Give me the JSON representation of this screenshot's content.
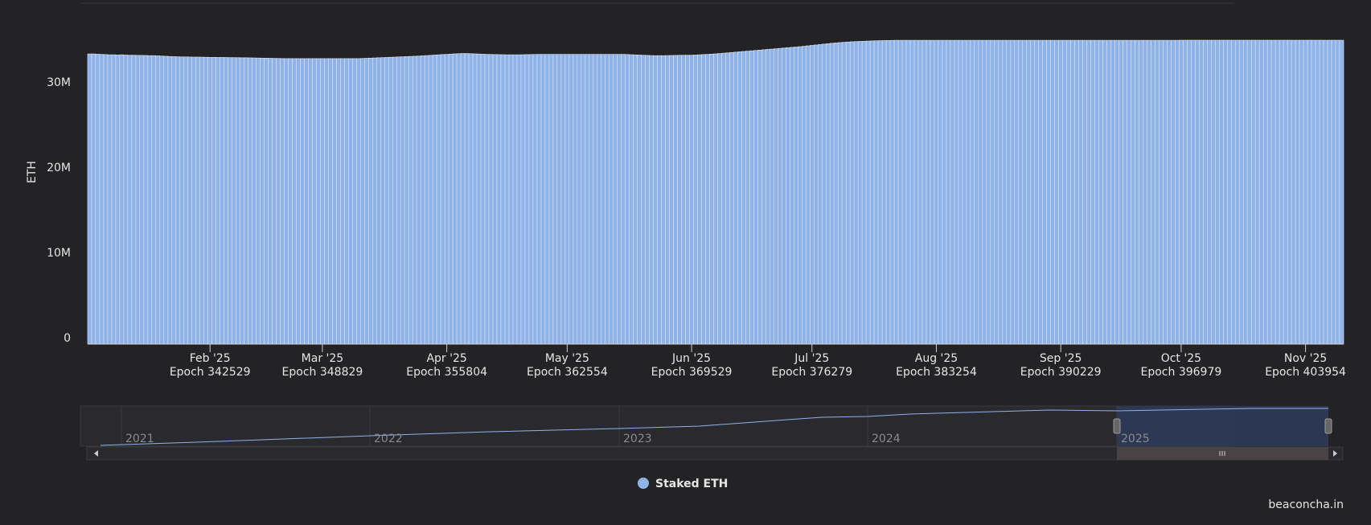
{
  "chart_data": {
    "type": "bar",
    "y_label": "ETH",
    "legend_name": "Staked ETH",
    "color": "#8fb2e8",
    "credit": "beaconcha.in",
    "xlim": [
      335667,
      406091
    ],
    "ylim": [
      0,
      40000000
    ],
    "yticks": [
      {
        "value": 0,
        "label": "0"
      },
      {
        "value": 10000000,
        "label": "10M"
      },
      {
        "value": 20000000,
        "label": "20M"
      },
      {
        "value": 30000000,
        "label": "30M"
      }
    ],
    "xticks": [
      {
        "value": 342529,
        "label": "Feb '25",
        "epoch": "Epoch 342529"
      },
      {
        "value": 348829,
        "label": "Mar '25",
        "epoch": "Epoch 348829"
      },
      {
        "value": 355804,
        "label": "Apr '25",
        "epoch": "Epoch 355804"
      },
      {
        "value": 362554,
        "label": "May '25",
        "epoch": "Epoch 362554"
      },
      {
        "value": 369529,
        "label": "Jun '25",
        "epoch": "Epoch 369529"
      },
      {
        "value": 376279,
        "label": "Jul '25",
        "epoch": "Epoch 376279"
      },
      {
        "value": 383254,
        "label": "Aug '25",
        "epoch": "Epoch 383254"
      },
      {
        "value": 390229,
        "label": "Sep '25",
        "epoch": "Epoch 390229"
      },
      {
        "value": 396979,
        "label": "Oct '25",
        "epoch": "Epoch 396979"
      },
      {
        "value": 403954,
        "label": "Nov '25",
        "epoch": "Epoch 403954"
      }
    ],
    "navigator_labels": [
      "2021",
      "2022",
      "2023",
      "2024",
      "2025"
    ],
    "x": [
      335779,
      336004,
      336229,
      336454,
      336679,
      336904,
      337129,
      337354,
      337579,
      337804,
      338029,
      338254,
      338479,
      338704,
      338929,
      339154,
      339379,
      339604,
      339829,
      340054,
      340279,
      340504,
      340729,
      340954,
      341179,
      341404,
      341629,
      341854,
      342079,
      342304,
      342529,
      342754,
      342979,
      343204,
      343429,
      343654,
      343879,
      344104,
      344329,
      344554,
      344779,
      345004,
      345229,
      345454,
      345679,
      345904,
      346129,
      346354,
      346579,
      346804,
      347029,
      347254,
      347479,
      347704,
      347929,
      348154,
      348379,
      348604,
      348829,
      349054,
      349279,
      349504,
      349729,
      349954,
      350179,
      350404,
      350629,
      350854,
      351079,
      351304,
      351529,
      351754,
      351979,
      352204,
      352429,
      352654,
      352879,
      353104,
      353329,
      353554,
      353779,
      354004,
      354229,
      354454,
      354679,
      354904,
      355129,
      355354,
      355579,
      355804,
      356029,
      356254,
      356479,
      356704,
      356929,
      357154,
      357379,
      357604,
      357829,
      358054,
      358279,
      358504,
      358729,
      358954,
      359179,
      359404,
      359629,
      359854,
      360079,
      360304,
      360529,
      360754,
      360979,
      361204,
      361429,
      361654,
      361879,
      362104,
      362329,
      362554,
      362779,
      363004,
      363229,
      363454,
      363679,
      363904,
      364129,
      364354,
      364579,
      364804,
      365029,
      365254,
      365479,
      365704,
      365929,
      366154,
      366379,
      366604,
      366829,
      367054,
      367279,
      367504,
      367729,
      367954,
      368179,
      368404,
      368629,
      368854,
      369079,
      369304,
      369529,
      369754,
      369979,
      370204,
      370429,
      370654,
      370879,
      371104,
      371329,
      371554,
      371779,
      372004,
      372229,
      372454,
      372679,
      372904,
      373129,
      373354,
      373579,
      373804,
      374029,
      374254,
      374479,
      374704,
      374929,
      375154,
      375379,
      375604,
      375829,
      376054,
      376279,
      376504,
      376729,
      376954,
      377179,
      377404,
      377629,
      377854,
      378079,
      378304,
      378529,
      378754,
      378979,
      379204,
      379429,
      379654,
      379879,
      380104,
      380329,
      380554,
      380779,
      381004,
      381229,
      381454,
      381679,
      381904,
      382129,
      382354,
      382579,
      382804,
      383029,
      383254,
      383479,
      383704,
      383929,
      384154,
      384379,
      384604,
      384829,
      385054,
      385279,
      385504,
      385729,
      385954,
      386179,
      386404,
      386629,
      386854,
      387079,
      387304,
      387529,
      387754,
      387979,
      388204,
      388429,
      388654,
      388879,
      389104,
      389329,
      389554,
      389779,
      390004,
      390229,
      390454,
      390679,
      390904,
      391129,
      391354,
      391579,
      391804,
      392029,
      392254,
      392479,
      392704,
      392929,
      393154,
      393379,
      393604,
      393829,
      394054,
      394279,
      394504,
      394729,
      394954,
      395179,
      395404,
      395629,
      395854,
      396079,
      396304,
      396529,
      396754,
      396979,
      397204,
      397429,
      397654,
      397879,
      398104,
      398329,
      398554,
      398779,
      399004,
      399229,
      399454,
      399679,
      399904,
      400129,
      400354,
      400579,
      400804,
      401029,
      401254,
      401479,
      401704,
      401929,
      402154,
      402379,
      402604,
      402829,
      403054,
      403279,
      403504,
      403729,
      403954,
      404179,
      404404,
      404629,
      404854,
      405079,
      405304,
      405529,
      405754,
      405979
    ],
    "values": [
      34050000,
      34050000,
      34020000,
      34000000,
      33980000,
      33950000,
      33950000,
      33930000,
      33950000,
      33920000,
      33900000,
      33900000,
      33880000,
      33880000,
      33870000,
      33850000,
      33850000,
      33830000,
      33800000,
      33780000,
      33750000,
      33730000,
      33720000,
      33700000,
      33700000,
      33690000,
      33680000,
      33680000,
      33670000,
      33660000,
      33650000,
      33650000,
      33640000,
      33640000,
      33630000,
      33620000,
      33620000,
      33610000,
      33600000,
      33600000,
      33590000,
      33580000,
      33570000,
      33560000,
      33550000,
      33540000,
      33530000,
      33520000,
      33510000,
      33500000,
      33500000,
      33500000,
      33500000,
      33500000,
      33500000,
      33500000,
      33500000,
      33500000,
      33500000,
      33500000,
      33500000,
      33500000,
      33500000,
      33500000,
      33500000,
      33500000,
      33500000,
      33500000,
      33520000,
      33540000,
      33560000,
      33580000,
      33600000,
      33620000,
      33640000,
      33660000,
      33680000,
      33700000,
      33720000,
      33740000,
      33760000,
      33780000,
      33800000,
      33830000,
      33860000,
      33890000,
      33920000,
      33950000,
      33980000,
      34000000,
      34030000,
      34060000,
      34080000,
      34100000,
      34100000,
      34080000,
      34060000,
      34040000,
      34020000,
      34000000,
      33990000,
      33980000,
      33970000,
      33960000,
      33950000,
      33950000,
      33950000,
      33950000,
      33960000,
      33970000,
      33980000,
      33990000,
      34000000,
      34000000,
      34000000,
      34000000,
      34000000,
      34000000,
      34000000,
      34000000,
      34000000,
      34000000,
      34000000,
      34000000,
      34000000,
      34000000,
      34000000,
      34000000,
      34000000,
      34000000,
      34000000,
      34000000,
      34000000,
      34000000,
      33980000,
      33960000,
      33940000,
      33920000,
      33900000,
      33880000,
      33860000,
      33850000,
      33850000,
      33850000,
      33860000,
      33870000,
      33880000,
      33890000,
      33900000,
      33900000,
      33900000,
      33920000,
      33950000,
      33980000,
      34000000,
      34030000,
      34060000,
      34100000,
      34140000,
      34180000,
      34220000,
      34260000,
      34300000,
      34340000,
      34380000,
      34420000,
      34460000,
      34500000,
      34540000,
      34580000,
      34620000,
      34660000,
      34700000,
      34740000,
      34780000,
      34820000,
      34860000,
      34900000,
      34950000,
      35000000,
      35050000,
      35100000,
      35150000,
      35200000,
      35250000,
      35300000,
      35340000,
      35380000,
      35420000,
      35450000,
      35480000,
      35500000,
      35520000,
      35540000,
      35560000,
      35580000,
      35600000,
      35610000,
      35620000,
      35630000,
      35640000,
      35650000,
      35650000,
      35650000,
      35650000,
      35650000,
      35650000,
      35650000,
      35650000,
      35650000,
      35650000,
      35650000,
      35650000,
      35650000,
      35650000,
      35650000,
      35650000,
      35650000,
      35650000,
      35650000,
      35650000,
      35650000,
      35650000,
      35650000,
      35650000,
      35650000,
      35650000,
      35650000,
      35650000,
      35650000,
      35650000,
      35650000,
      35650000,
      35650000,
      35650000,
      35650000,
      35650000,
      35650000,
      35650000,
      35650000,
      35650000,
      35650000,
      35650000,
      35650000,
      35650000,
      35650000,
      35650000,
      35650000,
      35650000,
      35650000,
      35650000,
      35650000,
      35650000,
      35650000,
      35650000,
      35650000,
      35650000,
      35650000,
      35650000,
      35650000,
      35650000,
      35650000,
      35650000,
      35650000,
      35650000,
      35650000,
      35650000,
      35650000,
      35650000,
      35650000,
      35650000,
      35650000,
      35660000,
      35660000,
      35660000,
      35660000,
      35660000,
      35660000,
      35660000,
      35660000,
      35660000,
      35660000,
      35660000,
      35660000,
      35660000,
      35660000,
      35660000,
      35660000,
      35660000,
      35660000,
      35660000,
      35660000,
      35660000,
      35660000,
      35660000,
      35660000,
      35660000,
      35660000,
      35660000,
      35660000,
      35660000,
      35660000,
      35660000,
      35660000,
      35660000,
      35660000,
      35660000,
      35660000,
      35660000,
      35660000,
      35660000,
      35660000,
      35660000
    ]
  }
}
